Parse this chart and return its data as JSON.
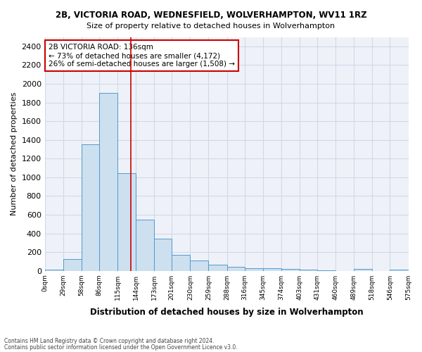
{
  "title1": "2B, VICTORIA ROAD, WEDNESFIELD, WOLVERHAMPTON, WV11 1RZ",
  "title2": "Size of property relative to detached houses in Wolverhampton",
  "xlabel": "Distribution of detached houses by size in Wolverhampton",
  "ylabel": "Number of detached properties",
  "footer1": "Contains HM Land Registry data © Crown copyright and database right 2024.",
  "footer2": "Contains public sector information licensed under the Open Government Licence v3.0.",
  "annotation_title": "2B VICTORIA ROAD: 136sqm",
  "annotation_line1": "← 73% of detached houses are smaller (4,172)",
  "annotation_line2": "26% of semi-detached houses are larger (1,508) →",
  "property_size": 136,
  "bar_color": "#cce0f0",
  "bar_edge_color": "#5599cc",
  "red_line_color": "#cc0000",
  "annotation_box_color": "#ffffff",
  "annotation_box_edge": "#cc0000",
  "grid_color": "#d0d8e8",
  "bg_color": "#eef2f8",
  "bin_edges": [
    0,
    29,
    58,
    86,
    115,
    144,
    173,
    201,
    230,
    259,
    288,
    316,
    345,
    374,
    403,
    431,
    460,
    489,
    518,
    546,
    575
  ],
  "bin_labels": [
    "0sqm",
    "29sqm",
    "58sqm",
    "86sqm",
    "115sqm",
    "144sqm",
    "173sqm",
    "201sqm",
    "230sqm",
    "259sqm",
    "288sqm",
    "316sqm",
    "345sqm",
    "374sqm",
    "403sqm",
    "431sqm",
    "460sqm",
    "489sqm",
    "518sqm",
    "546sqm",
    "575sqm"
  ],
  "bar_heights": [
    15,
    125,
    1350,
    1900,
    1045,
    545,
    340,
    170,
    110,
    65,
    40,
    30,
    25,
    20,
    15,
    5,
    0,
    20,
    0,
    15
  ],
  "ylim": [
    0,
    2500
  ],
  "yticks": [
    0,
    200,
    400,
    600,
    800,
    1000,
    1200,
    1400,
    1600,
    1800,
    2000,
    2200,
    2400
  ]
}
